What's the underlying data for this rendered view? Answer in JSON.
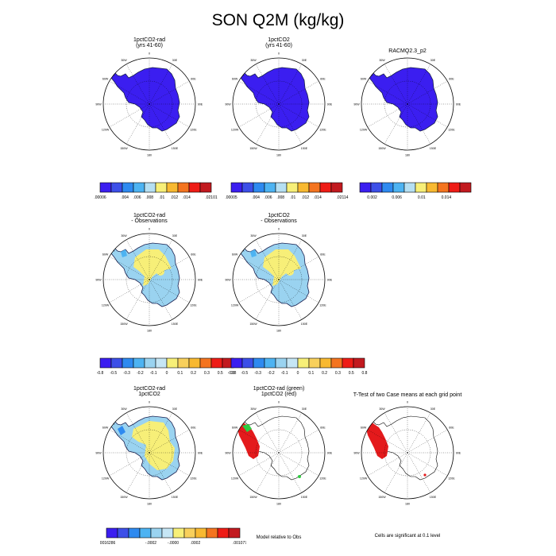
{
  "title": "SON Q2M (kg/kg)",
  "colors": {
    "absolute": [
      "#3b1ef0",
      "#3c4fe8",
      "#2e8af0",
      "#4db3f2",
      "#b5dff2",
      "#f7ef78",
      "#f8b931",
      "#f4741f",
      "#ee1c16",
      "#c21a1f"
    ],
    "diff": [
      "#3b1ef0",
      "#3c4fe8",
      "#2e8af0",
      "#4db3f2",
      "#9ad3f0",
      "#c6e6f5",
      "#f7ef78",
      "#f8d05c",
      "#f8b931",
      "#f4741f",
      "#ee1c16",
      "#c21a1f"
    ],
    "coast": "#1a2050",
    "significant_red": "#e41a1c",
    "significant_green": "#2ecc40"
  },
  "longitude_labels": [
    "0",
    "30E",
    "60E",
    "90E",
    "120E",
    "150E",
    "180",
    "150W",
    "120W",
    "90W",
    "60W",
    "30W"
  ],
  "panels": [
    {
      "id": "p1",
      "title1": "1pctCO2-rad",
      "title2": "(yrs 41-60)",
      "kind": "absolute"
    },
    {
      "id": "p2",
      "title1": "1pctCO2",
      "title2": "(yrs 41-60)",
      "kind": "absolute"
    },
    {
      "id": "p3",
      "title1": "RACMO2.3_p2",
      "title2": "",
      "kind": "absolute"
    },
    {
      "id": "p4",
      "title1": "1pctCO2-rad",
      "title2": "- Observations",
      "kind": "diff"
    },
    {
      "id": "p5",
      "title1": "1pctCO2",
      "title2": "- Observations",
      "kind": "diff"
    },
    {
      "id": "p6",
      "title1": "1pctCO2-rad",
      "title2": "1pctCO2",
      "kind": "diff2"
    },
    {
      "id": "p7",
      "title1": "1pctCO2-rad (green)",
      "title2": "1pctCO2 (red)",
      "kind": "sig"
    },
    {
      "id": "p8",
      "title1": "T-Test of two Case means at each grid point",
      "title2": "",
      "kind": "ttest"
    }
  ],
  "colorbars": {
    "cb1": {
      "labels": [
        ".00006",
        "",
        ".004",
        ".006",
        ".008",
        ".01",
        ".012",
        ".014",
        "",
        ".02101"
      ]
    },
    "cb2": {
      "labels": [
        ".00005",
        "",
        ".004",
        ".006",
        ".008",
        ".01",
        ".012",
        ".014",
        "",
        ".02114"
      ]
    },
    "cb3": {
      "labels": [
        "",
        "0.002",
        "",
        "0.006",
        "",
        "0.01",
        "",
        "0.014",
        "",
        ""
      ]
    },
    "cb4": {
      "labels": [
        "-0.8",
        "-0.5",
        "-0.3",
        "-0.2",
        "-0.1",
        "0",
        "0.1",
        "0.2",
        "0.3",
        "0.5",
        "0.8"
      ]
    },
    "cb5": {
      "labels": [
        "-0.8",
        "-0.5",
        "-0.3",
        "-0.2",
        "-0.1",
        "0",
        "0.1",
        "0.2",
        "0.3",
        "0.5",
        "0.8"
      ]
    },
    "cb6": {
      "labels": [
        "-.0016286",
        "",
        "-.0002",
        "-.0000",
        ".0002",
        "",
        ".001077"
      ]
    }
  },
  "notes": {
    "model_relative": "Model relative to Obs",
    "significance": "Cells are significant at 0.1 level"
  }
}
